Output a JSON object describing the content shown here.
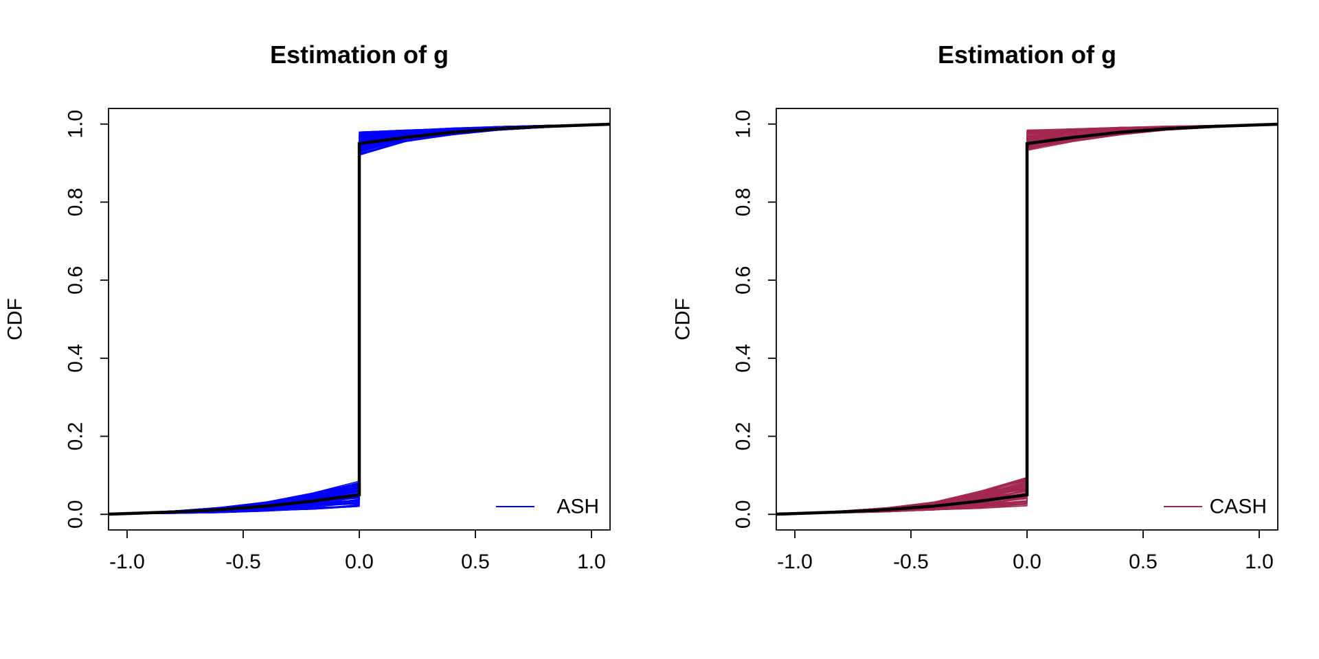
{
  "chart_data": [
    {
      "type": "line",
      "title": "Estimation of g",
      "xlabel": "",
      "ylabel": "CDF",
      "xlim": [
        -1.08,
        1.08
      ],
      "ylim": [
        -0.04,
        1.04
      ],
      "x_ticks": [
        -1.0,
        -0.5,
        0.0,
        0.5,
        1.0
      ],
      "x_tick_labels": [
        "-1.0",
        "-0.5",
        "0.0",
        "0.5",
        "1.0"
      ],
      "y_ticks": [
        0.0,
        0.2,
        0.4,
        0.6,
        0.8,
        1.0
      ],
      "y_tick_labels": [
        "0.0",
        "0.2",
        "0.4",
        "0.6",
        "0.8",
        "1.0"
      ],
      "grid": false,
      "legend": {
        "position": "bottom-right",
        "entries": [
          {
            "label": "ASH",
            "color": "#0000ff"
          }
        ]
      },
      "true_cdf": {
        "color": "#000000",
        "x": [
          -1.1,
          -1.0,
          -0.8,
          -0.6,
          -0.4,
          -0.2,
          0.0,
          0.0,
          0.2,
          0.4,
          0.6,
          0.8,
          1.0,
          1.1
        ],
        "y": [
          0.0,
          0.002,
          0.006,
          0.012,
          0.021,
          0.034,
          0.05,
          0.95,
          0.966,
          0.979,
          0.988,
          0.994,
          0.998,
          1.0
        ]
      },
      "estimates": {
        "color": "#0000ff",
        "count": 100,
        "x": [
          -1.1,
          -1.0,
          -0.8,
          -0.6,
          -0.4,
          -0.2,
          0.0,
          0.0,
          0.2,
          0.4,
          0.6,
          0.8,
          1.0,
          1.1
        ],
        "lower": [
          0.0,
          0.001,
          0.002,
          0.004,
          0.008,
          0.013,
          0.02,
          0.92,
          0.955,
          0.972,
          0.984,
          0.991,
          0.997,
          1.0
        ],
        "upper": [
          0.0,
          0.003,
          0.009,
          0.018,
          0.032,
          0.055,
          0.085,
          0.98,
          0.985,
          0.99,
          0.994,
          0.997,
          0.999,
          1.0
        ]
      }
    },
    {
      "type": "line",
      "title": "Estimation of g",
      "xlabel": "",
      "ylabel": "CDF",
      "xlim": [
        -1.08,
        1.08
      ],
      "ylim": [
        -0.04,
        1.04
      ],
      "x_ticks": [
        -1.0,
        -0.5,
        0.0,
        0.5,
        1.0
      ],
      "x_tick_labels": [
        "-1.0",
        "-0.5",
        "0.0",
        "0.5",
        "1.0"
      ],
      "y_ticks": [
        0.0,
        0.2,
        0.4,
        0.6,
        0.8,
        1.0
      ],
      "y_tick_labels": [
        "0.0",
        "0.2",
        "0.4",
        "0.6",
        "0.8",
        "1.0"
      ],
      "grid": false,
      "legend": {
        "position": "bottom-right",
        "entries": [
          {
            "label": "CASH",
            "color": "#a3284f"
          }
        ]
      },
      "true_cdf": {
        "color": "#000000",
        "x": [
          -1.1,
          -1.0,
          -0.8,
          -0.6,
          -0.4,
          -0.2,
          0.0,
          0.0,
          0.2,
          0.4,
          0.6,
          0.8,
          1.0,
          1.1
        ],
        "y": [
          0.0,
          0.002,
          0.006,
          0.012,
          0.021,
          0.034,
          0.05,
          0.95,
          0.966,
          0.979,
          0.988,
          0.994,
          0.998,
          1.0
        ]
      },
      "estimates": {
        "color": "#a3284f",
        "count": 100,
        "x": [
          -1.1,
          -1.0,
          -0.8,
          -0.6,
          -0.4,
          -0.2,
          0.0,
          0.0,
          0.2,
          0.4,
          0.6,
          0.8,
          1.0,
          1.1
        ],
        "lower": [
          0.0,
          0.001,
          0.003,
          0.006,
          0.01,
          0.015,
          0.02,
          0.93,
          0.955,
          0.972,
          0.984,
          0.991,
          0.997,
          1.0
        ],
        "upper": [
          0.0,
          0.003,
          0.009,
          0.018,
          0.032,
          0.06,
          0.095,
          0.985,
          0.988,
          0.992,
          0.995,
          0.997,
          0.999,
          1.0
        ]
      }
    }
  ]
}
